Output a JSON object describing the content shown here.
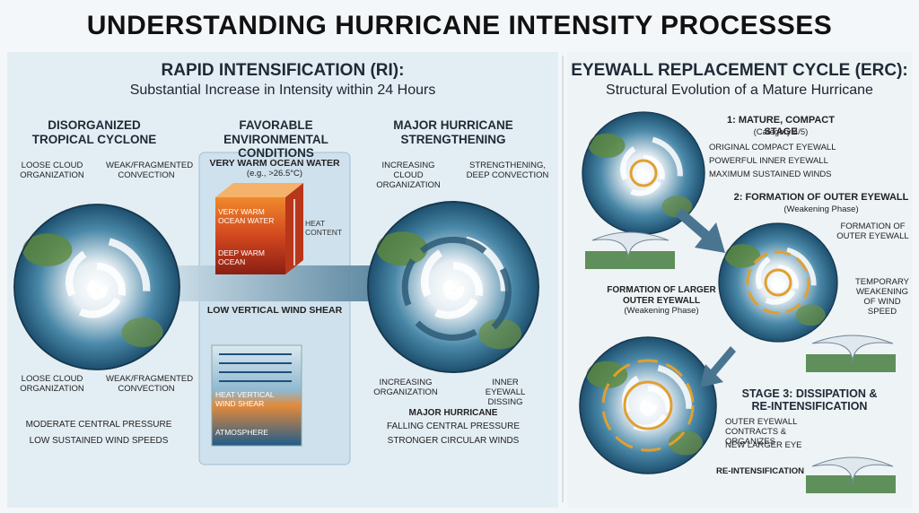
{
  "title": "UNDERSTANDING HURRICANE INTENSITY PROCESSES",
  "rapid_intensification": {
    "heading": "RAPID INTENSIFICATION (RI):",
    "subheading": "Substantial Increase in Intensity within 24 Hours",
    "stage1": {
      "title": "DISORGANIZED TROPICAL CYCLONE",
      "labels": [
        "LOOSE CLOUD ORGANIZATION",
        "WEAK/FRAGMENTED CONVECTION",
        "LOOSE CLOUD ORGANIZATION",
        "WEAK/FRAGMENTED CONVECTION"
      ],
      "notes": [
        "MODERATE CENTRAL PRESSURE",
        "LOW SUSTAINED WIND SPEEDS"
      ]
    },
    "environment": {
      "title": "FAVORABLE ENVIRONMENTAL CONDITIONS",
      "warm_water": {
        "title": "VERY WARM OCEAN WATER",
        "example": "(e.g., >26.5°C)",
        "labels": [
          "VERY WARM OCEAN WATER",
          "DEEP WARM OCEAN",
          "HEAT CONTENT"
        ]
      },
      "wind_shear": {
        "title": "LOW VERTICAL WIND SHEAR",
        "labels": [
          "HEAT VERTICAL WIND SHEAR",
          "ATMOSPHERE"
        ]
      }
    },
    "stage3": {
      "title": "MAJOR HURRICANE STRENGTHENING",
      "labels": [
        "INCREASING CLOUD ORGANIZATION",
        "STRENGTHENING, DEEP CONVECTION",
        "INCREASING ORGANIZATION",
        "INNER EYEWALL DISSING"
      ],
      "notes": [
        "MAJOR HURRICANE",
        "FALLING CENTRAL PRESSURE",
        "STRONGER CIRCULAR WINDS"
      ]
    }
  },
  "eyewall_replacement": {
    "heading": "EYEWALL REPLACEMENT CYCLE (ERC):",
    "subheading": "Structural Evolution of a Mature Hurricane",
    "stage1": {
      "title": "1: MATURE, COMPACT STAGE",
      "subtitle": "(Category 4/5)",
      "labels": [
        "ORIGINAL COMPACT EYEWALL",
        "POWERFUL INNER EYEWALL",
        "MAXIMUM SUSTAINED WINDS"
      ]
    },
    "stage2": {
      "title": "2: FORMATION OF OUTER EYEWALL",
      "subtitle": "(Weakening Phase)",
      "labels": [
        "FORMATION OF OUTER EYEWALL",
        "FORMATION OF LARGER OUTER EYEWALL",
        "(Weakening Phase)",
        "TEMPORARY WEAKENING OF WIND SPEED"
      ]
    },
    "stage3": {
      "title": "STAGE 3: DISSIPATION & RE-INTENSIFICATION",
      "labels": [
        "OUTER EYEWALL CONTRACTS & ORGANIZES",
        "NEW LARGER EYE",
        "RE-INTENSIFICATION"
      ]
    }
  }
}
